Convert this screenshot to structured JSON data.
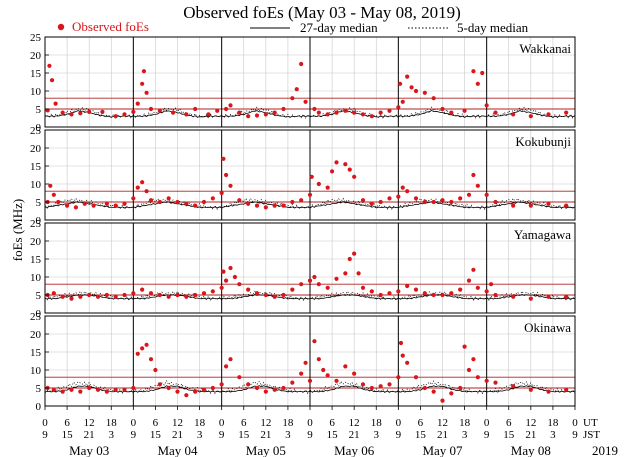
{
  "chart_data": {
    "type": "scatter",
    "title": "Observed foEs (May 03 - May 08, 2019)",
    "ylabel": "foEs (MHz)",
    "ylim": [
      0,
      25
    ],
    "yticks": [
      0,
      5,
      10,
      15,
      20,
      25
    ],
    "xlim": [
      0,
      6
    ],
    "grid": true,
    "legend": {
      "placement": "top",
      "observed": "Observed foEs",
      "median27": "27-day median",
      "median5": "5-day median"
    },
    "colors": {
      "observed": "#d8161b",
      "threshold": "#b22222",
      "median": "#000000"
    },
    "thresholds": [
      5,
      8
    ],
    "time_axis": {
      "ut_label": "UT",
      "jst_label": "JST",
      "ut_ticks": [
        "0",
        "6",
        "12",
        "18"
      ],
      "jst_ticks": [
        "9",
        "15",
        "21",
        "3"
      ],
      "day_labels": [
        "May 03",
        "May 04",
        "May 05",
        "May 06",
        "May 07",
        "May 08"
      ],
      "year": "2019"
    },
    "stations": [
      {
        "name": "Wakkanai",
        "median27": [
          3.0,
          3.0,
          3.5,
          4.5,
          4.0,
          3.2,
          2.8,
          3.0
        ],
        "median5": [
          3.0,
          3.2,
          4.0,
          5.0,
          4.8,
          3.5,
          3.0,
          3.0
        ],
        "observed": [
          [
            0.03,
            4.6
          ],
          [
            0.05,
            17.0
          ],
          [
            0.08,
            13.0
          ],
          [
            0.12,
            6.5
          ],
          [
            0.2,
            4.0
          ],
          [
            0.3,
            3.5
          ],
          [
            0.4,
            3.8
          ],
          [
            0.5,
            4.2
          ],
          [
            0.65,
            4.2
          ],
          [
            0.8,
            3.0
          ],
          [
            0.9,
            3.5
          ],
          [
            1.0,
            4.2
          ],
          [
            1.05,
            6.5
          ],
          [
            1.1,
            12.0
          ],
          [
            1.12,
            15.5
          ],
          [
            1.15,
            9.5
          ],
          [
            1.2,
            5.0
          ],
          [
            1.3,
            4.5
          ],
          [
            1.45,
            4.0
          ],
          [
            1.6,
            3.5
          ],
          [
            1.7,
            5.0
          ],
          [
            1.85,
            3.5
          ],
          [
            1.95,
            4.5
          ],
          [
            2.05,
            5.0
          ],
          [
            2.1,
            6.0
          ],
          [
            2.2,
            4.0
          ],
          [
            2.3,
            3.0
          ],
          [
            2.4,
            3.2
          ],
          [
            2.5,
            3.5
          ],
          [
            2.6,
            4.0
          ],
          [
            2.7,
            5.0
          ],
          [
            2.8,
            8.0
          ],
          [
            2.85,
            10.5
          ],
          [
            2.9,
            17.5
          ],
          [
            2.95,
            7.0
          ],
          [
            3.05,
            5.0
          ],
          [
            3.1,
            4.0
          ],
          [
            3.2,
            3.5
          ],
          [
            3.3,
            4.0
          ],
          [
            3.4,
            4.5
          ],
          [
            3.5,
            4.0
          ],
          [
            3.6,
            3.5
          ],
          [
            3.7,
            3.0
          ],
          [
            3.8,
            4.0
          ],
          [
            3.9,
            4.5
          ],
          [
            4.0,
            5.5
          ],
          [
            4.02,
            12.0
          ],
          [
            4.05,
            7.0
          ],
          [
            4.1,
            14.0
          ],
          [
            4.15,
            11.0
          ],
          [
            4.2,
            10.0
          ],
          [
            4.3,
            9.5
          ],
          [
            4.4,
            8.0
          ],
          [
            4.5,
            5.0
          ],
          [
            4.6,
            4.0
          ],
          [
            4.75,
            4.5
          ],
          [
            4.85,
            15.5
          ],
          [
            4.9,
            12.0
          ],
          [
            4.95,
            15.0
          ],
          [
            5.0,
            6.0
          ],
          [
            5.1,
            4.0
          ],
          [
            5.3,
            3.5
          ],
          [
            5.5,
            3.0
          ],
          [
            5.7,
            3.5
          ],
          [
            5.9,
            4.0
          ]
        ]
      },
      {
        "name": "Kokubunji",
        "median27": [
          3.5,
          4.0,
          4.5,
          5.0,
          4.5,
          4.0,
          3.5,
          3.5
        ],
        "median5": [
          3.5,
          4.5,
          5.5,
          5.5,
          5.0,
          4.5,
          4.0,
          3.5
        ],
        "observed": [
          [
            0.03,
            5.0
          ],
          [
            0.06,
            9.5
          ],
          [
            0.1,
            7.0
          ],
          [
            0.15,
            5.0
          ],
          [
            0.25,
            4.0
          ],
          [
            0.35,
            3.5
          ],
          [
            0.45,
            4.5
          ],
          [
            0.55,
            4.0
          ],
          [
            0.7,
            4.5
          ],
          [
            0.8,
            4.0
          ],
          [
            0.9,
            4.5
          ],
          [
            1.0,
            6.0
          ],
          [
            1.05,
            9.0
          ],
          [
            1.1,
            10.5
          ],
          [
            1.15,
            8.0
          ],
          [
            1.2,
            5.5
          ],
          [
            1.3,
            5.0
          ],
          [
            1.4,
            6.0
          ],
          [
            1.5,
            5.0
          ],
          [
            1.6,
            4.5
          ],
          [
            1.7,
            4.0
          ],
          [
            1.8,
            5.0
          ],
          [
            1.9,
            6.0
          ],
          [
            2.0,
            7.5
          ],
          [
            2.02,
            17.0
          ],
          [
            2.05,
            12.5
          ],
          [
            2.1,
            9.5
          ],
          [
            2.2,
            5.5
          ],
          [
            2.3,
            4.5
          ],
          [
            2.4,
            4.0
          ],
          [
            2.5,
            3.5
          ],
          [
            2.6,
            4.0
          ],
          [
            2.7,
            4.0
          ],
          [
            2.8,
            5.0
          ],
          [
            2.9,
            5.5
          ],
          [
            3.0,
            7.0
          ],
          [
            3.02,
            12.0
          ],
          [
            3.1,
            10.0
          ],
          [
            3.2,
            9.0
          ],
          [
            3.25,
            13.5
          ],
          [
            3.3,
            16.0
          ],
          [
            3.4,
            15.5
          ],
          [
            3.45,
            14.0
          ],
          [
            3.5,
            12.0
          ],
          [
            3.6,
            5.5
          ],
          [
            3.7,
            4.5
          ],
          [
            3.8,
            5.0
          ],
          [
            3.9,
            6.0
          ],
          [
            4.0,
            6.5
          ],
          [
            4.05,
            9.0
          ],
          [
            4.1,
            8.0
          ],
          [
            4.2,
            6.0
          ],
          [
            4.3,
            5.0
          ],
          [
            4.4,
            5.0
          ],
          [
            4.5,
            5.5
          ],
          [
            4.6,
            5.0
          ],
          [
            4.7,
            6.0
          ],
          [
            4.8,
            7.0
          ],
          [
            4.85,
            12.5
          ],
          [
            4.9,
            9.5
          ],
          [
            5.0,
            7.0
          ],
          [
            5.1,
            5.0
          ],
          [
            5.3,
            4.0
          ],
          [
            5.5,
            4.0
          ],
          [
            5.7,
            4.5
          ],
          [
            5.9,
            4.0
          ]
        ]
      },
      {
        "name": "Yamagawa",
        "median27": [
          4.0,
          4.0,
          4.5,
          5.0,
          5.0,
          4.5,
          4.0,
          4.0
        ],
        "median5": [
          4.0,
          4.5,
          5.0,
          5.5,
          5.5,
          5.0,
          4.5,
          4.0
        ],
        "observed": [
          [
            0.03,
            5.0
          ],
          [
            0.1,
            5.5
          ],
          [
            0.2,
            4.5
          ],
          [
            0.3,
            4.0
          ],
          [
            0.4,
            4.5
          ],
          [
            0.5,
            5.0
          ],
          [
            0.6,
            4.5
          ],
          [
            0.7,
            5.0
          ],
          [
            0.8,
            4.5
          ],
          [
            0.9,
            5.0
          ],
          [
            1.0,
            5.5
          ],
          [
            1.1,
            6.5
          ],
          [
            1.2,
            5.5
          ],
          [
            1.3,
            5.0
          ],
          [
            1.4,
            4.5
          ],
          [
            1.5,
            5.0
          ],
          [
            1.6,
            4.5
          ],
          [
            1.7,
            5.0
          ],
          [
            1.8,
            5.5
          ],
          [
            1.9,
            6.0
          ],
          [
            2.0,
            7.0
          ],
          [
            2.02,
            11.5
          ],
          [
            2.05,
            9.0
          ],
          [
            2.1,
            12.5
          ],
          [
            2.15,
            10.0
          ],
          [
            2.2,
            8.0
          ],
          [
            2.3,
            6.5
          ],
          [
            2.4,
            5.5
          ],
          [
            2.5,
            5.0
          ],
          [
            2.6,
            4.5
          ],
          [
            2.7,
            5.0
          ],
          [
            2.8,
            6.5
          ],
          [
            2.9,
            8.0
          ],
          [
            3.0,
            9.0
          ],
          [
            3.05,
            10.0
          ],
          [
            3.1,
            8.0
          ],
          [
            3.2,
            7.0
          ],
          [
            3.3,
            9.5
          ],
          [
            3.4,
            11.0
          ],
          [
            3.45,
            15.0
          ],
          [
            3.5,
            16.5
          ],
          [
            3.55,
            11.0
          ],
          [
            3.6,
            7.0
          ],
          [
            3.7,
            6.0
          ],
          [
            3.8,
            5.0
          ],
          [
            3.9,
            5.5
          ],
          [
            4.0,
            6.0
          ],
          [
            4.1,
            7.5
          ],
          [
            4.2,
            6.5
          ],
          [
            4.3,
            5.5
          ],
          [
            4.4,
            5.0
          ],
          [
            4.5,
            5.0
          ],
          [
            4.6,
            5.5
          ],
          [
            4.7,
            6.5
          ],
          [
            4.8,
            9.0
          ],
          [
            4.85,
            12.0
          ],
          [
            4.9,
            7.0
          ],
          [
            5.0,
            6.0
          ],
          [
            5.05,
            8.0
          ],
          [
            5.1,
            5.0
          ],
          [
            5.3,
            4.5
          ],
          [
            5.5,
            4.0
          ],
          [
            5.7,
            4.5
          ],
          [
            5.9,
            4.5
          ]
        ]
      },
      {
        "name": "Okinawa",
        "median27": [
          4.0,
          4.0,
          4.5,
          5.5,
          5.5,
          4.5,
          4.0,
          4.0
        ],
        "median5": [
          4.0,
          4.5,
          5.5,
          6.5,
          6.0,
          5.0,
          4.5,
          4.0
        ],
        "observed": [
          [
            0.03,
            5.0
          ],
          [
            0.1,
            4.5
          ],
          [
            0.2,
            4.0
          ],
          [
            0.3,
            4.5
          ],
          [
            0.4,
            4.0
          ],
          [
            0.5,
            5.0
          ],
          [
            0.6,
            4.5
          ],
          [
            0.7,
            4.0
          ],
          [
            0.8,
            4.5
          ],
          [
            0.9,
            4.5
          ],
          [
            1.0,
            5.0
          ],
          [
            1.05,
            14.5
          ],
          [
            1.1,
            16.0
          ],
          [
            1.15,
            17.0
          ],
          [
            1.2,
            13.0
          ],
          [
            1.25,
            10.0
          ],
          [
            1.3,
            6.0
          ],
          [
            1.4,
            5.0
          ],
          [
            1.5,
            4.0
          ],
          [
            1.6,
            3.0
          ],
          [
            1.7,
            4.0
          ],
          [
            1.8,
            4.5
          ],
          [
            1.9,
            5.0
          ],
          [
            2.0,
            6.0
          ],
          [
            2.05,
            11.0
          ],
          [
            2.1,
            13.0
          ],
          [
            2.2,
            8.0
          ],
          [
            2.3,
            6.0
          ],
          [
            2.4,
            5.0
          ],
          [
            2.5,
            4.0
          ],
          [
            2.6,
            4.5
          ],
          [
            2.7,
            5.0
          ],
          [
            2.8,
            6.5
          ],
          [
            2.9,
            9.0
          ],
          [
            2.95,
            12.0
          ],
          [
            3.0,
            7.0
          ],
          [
            3.05,
            18.0
          ],
          [
            3.1,
            13.0
          ],
          [
            3.15,
            10.0
          ],
          [
            3.2,
            8.5
          ],
          [
            3.3,
            7.0
          ],
          [
            3.4,
            11.0
          ],
          [
            3.5,
            9.0
          ],
          [
            3.6,
            6.0
          ],
          [
            3.7,
            5.0
          ],
          [
            3.8,
            5.5
          ],
          [
            3.9,
            6.0
          ],
          [
            4.0,
            8.0
          ],
          [
            4.03,
            17.5
          ],
          [
            4.05,
            14.0
          ],
          [
            4.1,
            12.0
          ],
          [
            4.2,
            8.0
          ],
          [
            4.3,
            5.0
          ],
          [
            4.4,
            4.0
          ],
          [
            4.5,
            1.5
          ],
          [
            4.6,
            3.5
          ],
          [
            4.7,
            5.0
          ],
          [
            4.75,
            16.5
          ],
          [
            4.8,
            10.0
          ],
          [
            4.85,
            13.0
          ],
          [
            4.9,
            8.0
          ],
          [
            5.0,
            7.0
          ],
          [
            5.1,
            6.5
          ],
          [
            5.3,
            5.5
          ],
          [
            5.5,
            4.5
          ],
          [
            5.7,
            4.0
          ],
          [
            5.9,
            4.5
          ]
        ]
      }
    ]
  }
}
